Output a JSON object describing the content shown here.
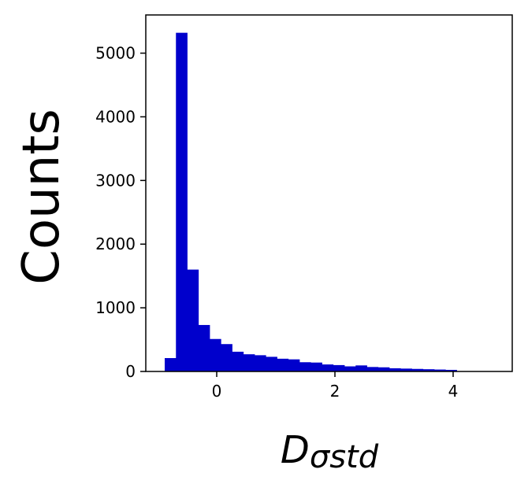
{
  "chart_data": {
    "type": "bar",
    "title": "",
    "ylabel": "Counts",
    "xlabel_main": "D",
    "xlabel_sub": "σstd",
    "xlim": [
      -1.2,
      5.0
    ],
    "ylim": [
      0,
      5600
    ],
    "xticks": [
      0,
      2,
      4
    ],
    "yticks": [
      0,
      1000,
      2000,
      3000,
      4000,
      5000
    ],
    "bar_color": "#0000cc",
    "bin_width": 0.19,
    "bins": [
      {
        "x0": -0.88,
        "value": 210
      },
      {
        "x0": -0.69,
        "value": 5320
      },
      {
        "x0": -0.5,
        "value": 1600
      },
      {
        "x0": -0.31,
        "value": 730
      },
      {
        "x0": -0.12,
        "value": 510
      },
      {
        "x0": 0.07,
        "value": 430
      },
      {
        "x0": 0.26,
        "value": 310
      },
      {
        "x0": 0.45,
        "value": 270
      },
      {
        "x0": 0.64,
        "value": 255
      },
      {
        "x0": 0.83,
        "value": 230
      },
      {
        "x0": 1.02,
        "value": 200
      },
      {
        "x0": 1.21,
        "value": 190
      },
      {
        "x0": 1.4,
        "value": 145
      },
      {
        "x0": 1.59,
        "value": 140
      },
      {
        "x0": 1.78,
        "value": 110
      },
      {
        "x0": 1.97,
        "value": 100
      },
      {
        "x0": 2.16,
        "value": 80
      },
      {
        "x0": 2.35,
        "value": 95
      },
      {
        "x0": 2.54,
        "value": 70
      },
      {
        "x0": 2.73,
        "value": 65
      },
      {
        "x0": 2.92,
        "value": 50
      },
      {
        "x0": 3.11,
        "value": 45
      },
      {
        "x0": 3.3,
        "value": 40
      },
      {
        "x0": 3.49,
        "value": 35
      },
      {
        "x0": 3.68,
        "value": 30
      },
      {
        "x0": 3.87,
        "value": 25
      }
    ]
  }
}
